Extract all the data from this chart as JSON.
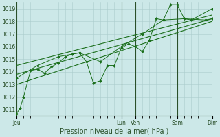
{
  "bg_color": "#cce8e8",
  "grid_color": "#aacccc",
  "line_color": "#1a6e1a",
  "xlabel": "Pression niveau de la mer( hPa )",
  "ylim": [
    1010.5,
    1019.5
  ],
  "yticks": [
    1011,
    1012,
    1013,
    1014,
    1015,
    1016,
    1017,
    1018,
    1019
  ],
  "day_labels": [
    "Jeu",
    "Lun",
    "Ven",
    "Sam",
    "Dim"
  ],
  "day_positions": [
    0,
    15,
    17,
    23,
    28
  ],
  "xlim": [
    0,
    28
  ],
  "series1_x": [
    0,
    0.5,
    1,
    2,
    3,
    4,
    5,
    6,
    7,
    8,
    9,
    10,
    11,
    12,
    13,
    14,
    15,
    16,
    17,
    18,
    19,
    20,
    21,
    22,
    23,
    24,
    25,
    28
  ],
  "series1_y": [
    1010.7,
    1011.1,
    1012.0,
    1014.1,
    1014.2,
    1013.9,
    1014.4,
    1014.7,
    1015.2,
    1015.4,
    1015.5,
    1014.8,
    1013.1,
    1013.3,
    1014.5,
    1014.5,
    1015.9,
    1016.2,
    1016.0,
    1015.6,
    1016.5,
    1018.2,
    1018.1,
    1019.3,
    1019.3,
    1018.2,
    1018.1,
    1019.0
  ],
  "trend1_x": [
    0,
    28
  ],
  "trend1_y": [
    1013.0,
    1018.0
  ],
  "trend2_x": [
    0,
    28
  ],
  "trend2_y": [
    1013.8,
    1018.2
  ],
  "trend3_x": [
    0,
    28
  ],
  "trend3_y": [
    1014.5,
    1018.5
  ],
  "series2_x": [
    0,
    3,
    6,
    9,
    12,
    15,
    18,
    21,
    24,
    27,
    28
  ],
  "series2_y": [
    1013.5,
    1014.5,
    1015.2,
    1015.5,
    1014.8,
    1016.0,
    1017.0,
    1018.1,
    1018.2,
    1018.1,
    1018.2
  ],
  "figsize": [
    3.2,
    2.0
  ],
  "dpi": 100
}
